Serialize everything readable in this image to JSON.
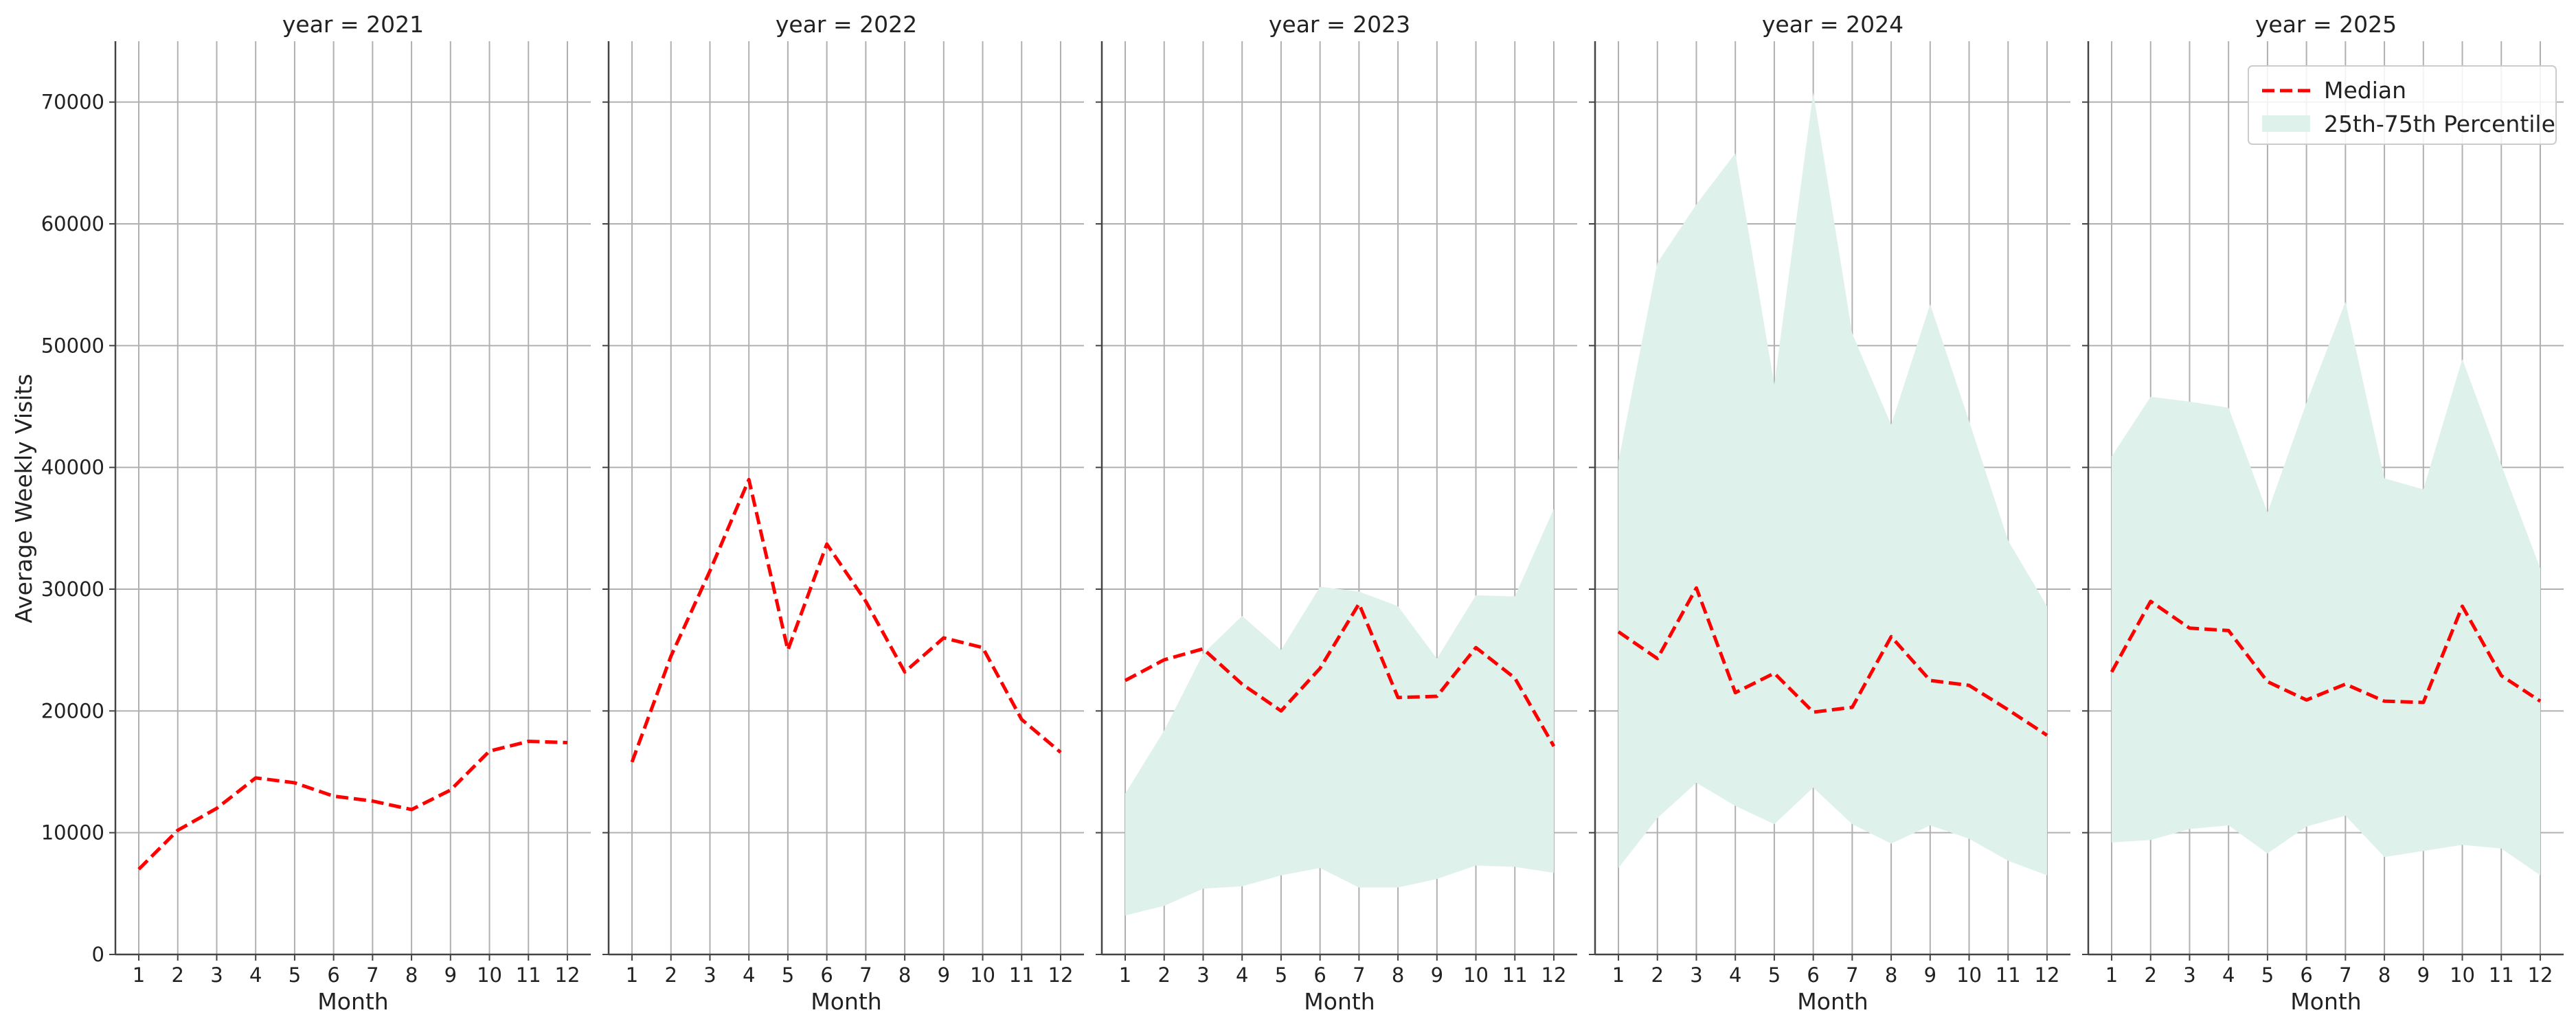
{
  "chart_data": {
    "type": "line",
    "ylabel": "Average Weekly Visits",
    "xlabel": "Month",
    "x": [
      1,
      2,
      3,
      4,
      5,
      6,
      7,
      8,
      9,
      10,
      11,
      12
    ],
    "ylim": [
      0,
      75000
    ],
    "yticks": [
      0,
      10000,
      20000,
      30000,
      40000,
      50000,
      60000,
      70000
    ],
    "grid": true,
    "legend": {
      "position": "top-right of last panel",
      "entries": [
        "Median",
        "25th-75th Percentile"
      ]
    },
    "colors": {
      "median": "#ff0000",
      "band": "#dff1eb"
    },
    "panels": [
      {
        "title": "year = 2021",
        "median": [
          7000,
          10200,
          12000,
          14500,
          14100,
          13000,
          12600,
          11900,
          13500,
          16700,
          17500,
          17400
        ],
        "p25": null,
        "p75": null
      },
      {
        "title": "year = 2022",
        "median": [
          15800,
          24500,
          31500,
          39000,
          25000,
          33700,
          29000,
          23200,
          26000,
          25200,
          19300,
          16600
        ],
        "p25": null,
        "p75": null
      },
      {
        "title": "year = 2023",
        "median": [
          22500,
          24200,
          25100,
          22200,
          20000,
          23500,
          28800,
          21100,
          21200,
          25200,
          22700,
          17100
        ],
        "p25": [
          3200,
          4000,
          5400,
          5600,
          6500,
          7100,
          5500,
          5500,
          6200,
          7300,
          7200,
          6700
        ],
        "p75": [
          13200,
          18400,
          24700,
          27800,
          25000,
          30200,
          29800,
          28600,
          24300,
          29500,
          29400,
          36600
        ]
      },
      {
        "title": "year = 2024",
        "median": [
          26500,
          24300,
          30100,
          21500,
          23100,
          19900,
          20300,
          26100,
          22500,
          22100,
          20100,
          18000
        ],
        "p25": [
          7100,
          11200,
          14100,
          12200,
          10700,
          13700,
          10700,
          9100,
          10600,
          9500,
          7700,
          6500
        ],
        "p75": [
          40500,
          56800,
          61600,
          65800,
          46800,
          70800,
          51000,
          43500,
          53400,
          43800,
          34000,
          28600
        ]
      },
      {
        "title": "year = 2025",
        "median": [
          23200,
          29000,
          26800,
          26600,
          22400,
          20900,
          22200,
          20800,
          20700,
          28600,
          22900,
          20800
        ],
        "p25": [
          9200,
          9400,
          10300,
          10600,
          8300,
          10500,
          11400,
          8000,
          8500,
          9000,
          8700,
          6500
        ],
        "p75": [
          40900,
          45800,
          45400,
          44900,
          36300,
          45300,
          53600,
          39100,
          38200,
          48900,
          40200,
          31700
        ]
      }
    ]
  }
}
